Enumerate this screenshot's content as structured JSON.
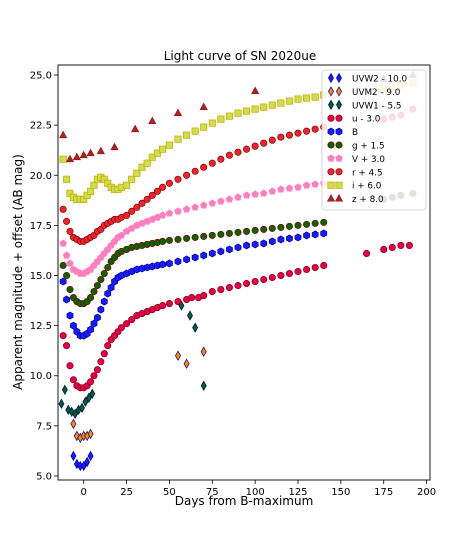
{
  "chart_data": {
    "type": "scatter",
    "title": "Light curve of SN 2020ue",
    "xlabel": "Days from B-maximum",
    "ylabel": "Apparent magnitude + offset (AB mag)",
    "xlim": [
      -15,
      202
    ],
    "ylim": [
      25.5,
      4.8
    ],
    "y_inverted": true,
    "grid": false,
    "legend_position": "top-right",
    "x_ticks": [
      0,
      25,
      50,
      75,
      100,
      125,
      150,
      175,
      200
    ],
    "y_ticks": [
      5.0,
      7.5,
      10.0,
      12.5,
      15.0,
      17.5,
      20.0,
      22.5,
      25.0
    ],
    "series": [
      {
        "name": "UVW2 - 10.0",
        "color": "#1a1aff",
        "edge": "#00008b",
        "marker": "diamond",
        "x": [
          -6,
          -4,
          -2,
          0,
          2,
          4
        ],
        "y": [
          6.0,
          5.6,
          5.5,
          5.5,
          5.7,
          6.0
        ]
      },
      {
        "name": "UVM2 - 9.0",
        "color": "#ff8c00",
        "edge": "#00008b",
        "marker": "diamond",
        "x": [
          -6,
          -4,
          -2,
          0,
          2,
          4,
          55,
          60,
          70
        ],
        "y": [
          7.6,
          7.0,
          6.9,
          7.0,
          7.0,
          7.1,
          11.0,
          10.6,
          11.2
        ]
      },
      {
        "name": "UVW1 - 5.5",
        "color": "#006400",
        "edge": "#00008b",
        "marker": "diamond",
        "x": [
          -13,
          -11,
          -9,
          -7,
          -5,
          -3,
          -1,
          1,
          3,
          5,
          57,
          62,
          65,
          70
        ],
        "y": [
          8.6,
          9.3,
          8.3,
          8.2,
          8.1,
          8.3,
          8.4,
          8.7,
          8.9,
          9.1,
          13.5,
          13.0,
          12.4,
          9.5
        ]
      },
      {
        "name": "u - 3.0",
        "color": "#dd0050",
        "edge": "#8b0000",
        "marker": "circle",
        "x": [
          -12,
          -10,
          -8,
          -6,
          -4,
          -2,
          0,
          2,
          4,
          6,
          8,
          10,
          12,
          14,
          16,
          18,
          20,
          22,
          25,
          28,
          31,
          34,
          37,
          40,
          43,
          46,
          50,
          55,
          60,
          63,
          67,
          70,
          75,
          80,
          85,
          90,
          95,
          100,
          105,
          110,
          115,
          120,
          125,
          130,
          135,
          140,
          165,
          175,
          180,
          185,
          190
        ],
        "y": [
          12.0,
          11.5,
          10.5,
          9.8,
          9.5,
          9.4,
          9.4,
          9.5,
          9.7,
          10.0,
          10.3,
          10.7,
          11.1,
          11.5,
          11.8,
          12.0,
          12.2,
          12.4,
          12.6,
          12.8,
          13.0,
          13.1,
          13.2,
          13.3,
          13.4,
          13.5,
          13.6,
          13.7,
          13.8,
          13.9,
          13.9,
          14.0,
          14.2,
          14.3,
          14.4,
          14.5,
          14.6,
          14.7,
          14.8,
          14.9,
          15.0,
          15.1,
          15.2,
          15.3,
          15.4,
          15.5,
          16.1,
          16.3,
          16.4,
          16.5,
          16.5
        ]
      },
      {
        "name": "B",
        "color": "#1a1aff",
        "edge": "#00008b",
        "marker": "hexagon",
        "x": [
          -12,
          -10,
          -8,
          -6,
          -4,
          -2,
          0,
          2,
          4,
          6,
          8,
          10,
          12,
          14,
          16,
          18,
          20,
          22,
          25,
          28,
          31,
          34,
          37,
          40,
          43,
          46,
          50,
          55,
          60,
          65,
          70,
          75,
          80,
          85,
          90,
          95,
          100,
          105,
          110,
          115,
          120,
          125,
          130,
          135,
          140
        ],
        "y": [
          14.7,
          13.8,
          13.0,
          12.5,
          12.2,
          12.0,
          12.0,
          12.1,
          12.3,
          12.6,
          12.9,
          13.3,
          13.7,
          14.1,
          14.4,
          14.7,
          14.9,
          15.0,
          15.1,
          15.2,
          15.3,
          15.35,
          15.4,
          15.45,
          15.5,
          15.55,
          15.6,
          15.7,
          15.8,
          15.9,
          16.0,
          16.1,
          16.2,
          16.3,
          16.4,
          16.5,
          16.55,
          16.6,
          16.7,
          16.8,
          16.85,
          16.9,
          17.0,
          17.05,
          17.1
        ]
      },
      {
        "name": "g + 1.5",
        "color": "#006400",
        "edge": "#8b0000",
        "marker": "circle",
        "x": [
          -12,
          -10,
          -8,
          -6,
          -4,
          -2,
          0,
          2,
          4,
          6,
          8,
          10,
          12,
          14,
          16,
          18,
          20,
          22,
          25,
          28,
          31,
          34,
          37,
          40,
          43,
          46,
          50,
          55,
          60,
          65,
          70,
          75,
          80,
          85,
          90,
          95,
          100,
          105,
          110,
          115,
          120,
          125,
          130,
          135,
          140,
          175,
          180,
          185,
          192
        ],
        "y": [
          15.5,
          15.0,
          14.3,
          13.9,
          13.7,
          13.6,
          13.6,
          13.7,
          13.9,
          14.2,
          14.5,
          14.8,
          15.1,
          15.4,
          15.7,
          15.9,
          16.1,
          16.2,
          16.3,
          16.4,
          16.45,
          16.5,
          16.55,
          16.6,
          16.65,
          16.7,
          16.75,
          16.8,
          16.85,
          16.9,
          16.95,
          17.0,
          17.05,
          17.1,
          17.15,
          17.2,
          17.25,
          17.3,
          17.35,
          17.4,
          17.45,
          17.5,
          17.55,
          17.6,
          17.65,
          18.8,
          18.9,
          19.0,
          19.1
        ]
      },
      {
        "name": "V + 3.0",
        "color": "#ff7fbf",
        "edge": "#ff7fbf",
        "marker": "pentagon",
        "x": [
          -12,
          -10,
          -8,
          -6,
          -4,
          -2,
          0,
          2,
          4,
          6,
          8,
          10,
          12,
          14,
          16,
          18,
          20,
          22,
          25,
          28,
          31,
          34,
          37,
          40,
          43,
          46,
          50,
          55,
          60,
          65,
          70,
          75,
          80,
          85,
          90,
          95,
          100,
          105,
          110,
          115,
          120,
          125,
          130,
          135,
          140
        ],
        "y": [
          16.6,
          16.0,
          15.6,
          15.3,
          15.2,
          15.1,
          15.1,
          15.2,
          15.3,
          15.5,
          15.7,
          15.9,
          16.1,
          16.3,
          16.5,
          16.7,
          16.9,
          17.0,
          17.2,
          17.35,
          17.5,
          17.6,
          17.7,
          17.8,
          17.9,
          18.0,
          18.1,
          18.2,
          18.3,
          18.4,
          18.5,
          18.6,
          18.7,
          18.8,
          18.9,
          19.0,
          19.05,
          19.1,
          19.2,
          19.3,
          19.35,
          19.4,
          19.5,
          19.55,
          19.6
        ]
      },
      {
        "name": "r + 4.5",
        "color": "#e8262f",
        "edge": "#8b0000",
        "marker": "circle",
        "x": [
          -12,
          -10,
          -8,
          -6,
          -4,
          -2,
          0,
          2,
          4,
          6,
          8,
          10,
          12,
          14,
          16,
          18,
          20,
          22,
          25,
          28,
          31,
          34,
          37,
          40,
          43,
          46,
          50,
          55,
          60,
          65,
          70,
          75,
          80,
          85,
          90,
          95,
          100,
          105,
          110,
          115,
          120,
          125,
          130,
          135,
          140,
          175,
          180,
          185,
          192
        ],
        "y": [
          18.3,
          17.7,
          17.2,
          16.9,
          16.8,
          16.7,
          16.7,
          16.8,
          16.9,
          17.0,
          17.2,
          17.3,
          17.5,
          17.6,
          17.7,
          17.8,
          17.8,
          17.9,
          18.0,
          18.2,
          18.4,
          18.6,
          18.8,
          19.0,
          19.2,
          19.4,
          19.6,
          19.8,
          20.0,
          20.2,
          20.4,
          20.6,
          20.8,
          21.0,
          21.15,
          21.3,
          21.45,
          21.6,
          21.75,
          21.9,
          22.0,
          22.1,
          22.2,
          22.3,
          22.4,
          22.8,
          22.9,
          23.0,
          23.3
        ]
      },
      {
        "name": "i + 6.0",
        "color": "#c8e04a",
        "edge": "#d4a000",
        "marker": "square",
        "x": [
          -12,
          -10,
          -8,
          -6,
          -4,
          -2,
          0,
          2,
          4,
          6,
          8,
          10,
          12,
          14,
          16,
          18,
          20,
          22,
          25,
          28,
          31,
          34,
          37,
          40,
          43,
          46,
          50,
          55,
          60,
          65,
          70,
          75,
          80,
          85,
          90,
          95,
          100,
          105,
          110,
          115,
          120,
          125,
          130,
          135,
          140,
          175,
          180,
          185,
          192
        ],
        "y": [
          20.8,
          19.8,
          19.1,
          18.9,
          18.8,
          18.8,
          18.8,
          19.0,
          19.2,
          19.5,
          19.8,
          19.9,
          19.8,
          19.6,
          19.4,
          19.3,
          19.3,
          19.4,
          19.5,
          19.8,
          20.1,
          20.4,
          20.6,
          20.9,
          21.1,
          21.3,
          21.5,
          21.8,
          22.0,
          22.2,
          22.4,
          22.6,
          22.8,
          22.95,
          23.1,
          23.2,
          23.3,
          23.4,
          23.5,
          23.6,
          23.7,
          23.8,
          23.85,
          23.9,
          24.0,
          24.3,
          24.4,
          24.5,
          24.6
        ]
      },
      {
        "name": "z + 8.0",
        "color": "#b22222",
        "edge": "#8b1a1a",
        "marker": "triangle",
        "x": [
          -12,
          -8,
          -4,
          0,
          4,
          10,
          18,
          30,
          40,
          55,
          70,
          100,
          175,
          192
        ],
        "y": [
          22.0,
          20.8,
          20.9,
          21.0,
          21.1,
          21.2,
          21.4,
          22.3,
          22.7,
          23.1,
          23.4,
          24.2,
          24.8,
          25.0
        ]
      }
    ]
  }
}
